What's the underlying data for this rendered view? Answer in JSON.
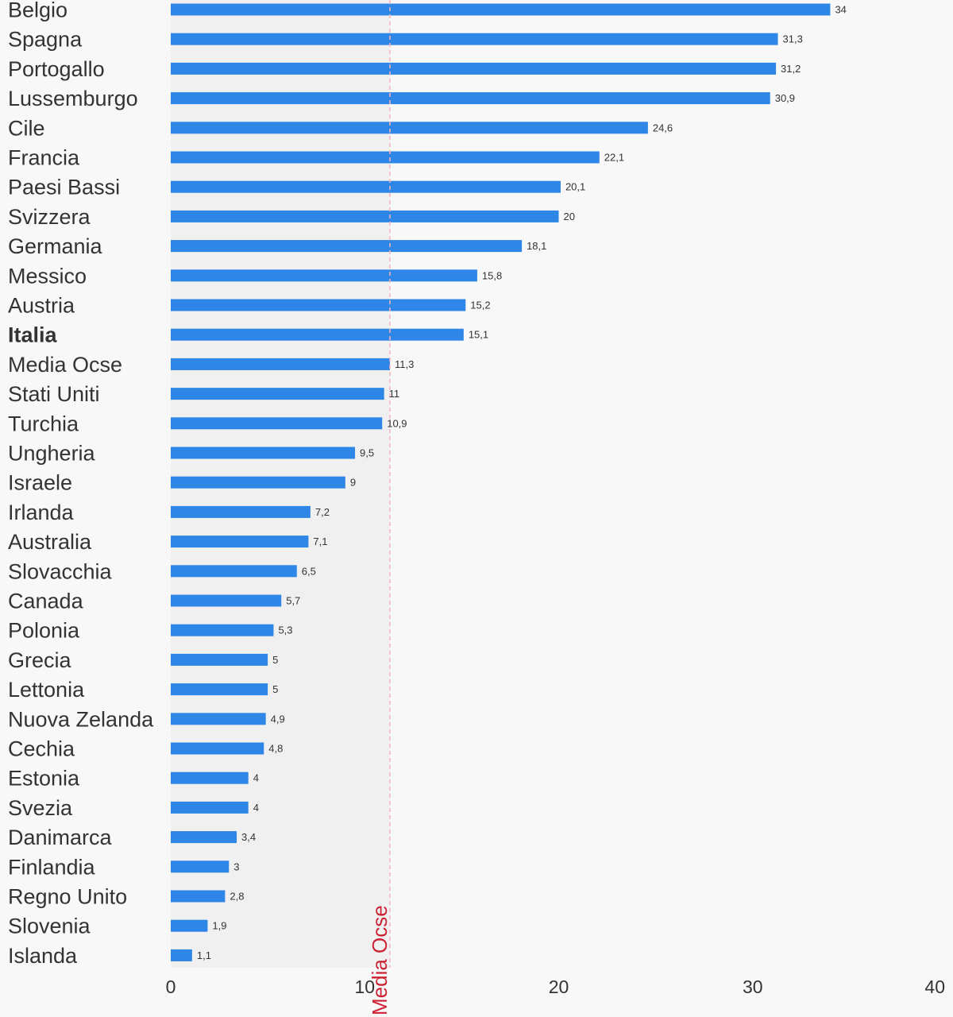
{
  "chart_data": {
    "type": "bar",
    "orientation": "horizontal",
    "categories": [
      "Belgio",
      "Spagna",
      "Portogallo",
      "Lussemburgo",
      "Cile",
      "Francia",
      "Paesi Bassi",
      "Svizzera",
      "Germania",
      "Messico",
      "Austria",
      "Italia",
      "Media Ocse",
      "Stati Uniti",
      "Turchia",
      "Ungheria",
      "Israele",
      "Irlanda",
      "Australia",
      "Slovacchia",
      "Canada",
      "Polonia",
      "Grecia",
      "Lettonia",
      "Nuova Zelanda",
      "Cechia",
      "Estonia",
      "Svezia",
      "Danimarca",
      "Finlandia",
      "Regno Unito",
      "Slovenia",
      "Islanda"
    ],
    "values": [
      34,
      31.3,
      31.2,
      30.9,
      24.6,
      22.1,
      20.1,
      20,
      18.1,
      15.8,
      15.2,
      15.1,
      11.3,
      11,
      10.9,
      9.5,
      9,
      7.2,
      7.1,
      6.5,
      5.7,
      5.3,
      5,
      5,
      4.9,
      4.8,
      4,
      4,
      3.4,
      3,
      2.8,
      1.9,
      1.1
    ],
    "value_labels": [
      "34",
      "31,3",
      "31,2",
      "30,9",
      "24,6",
      "22,1",
      "20,1",
      "20",
      "18,1",
      "15,8",
      "15,2",
      "15,1",
      "11,3",
      "11",
      "10,9",
      "9,5",
      "9",
      "7,2",
      "7,1",
      "6,5",
      "5,7",
      "5,3",
      "5",
      "5",
      "4,9",
      "4,8",
      "4",
      "4",
      "3,4",
      "3",
      "2,8",
      "1,9",
      "1,1"
    ],
    "highlight_category": "Italia",
    "xlim": [
      0,
      40
    ],
    "xticks": [
      0,
      10,
      20,
      30,
      40
    ],
    "xtick_labels": [
      "0",
      "10",
      "20",
      "30",
      "40"
    ],
    "reference_line": {
      "label": "Media Ocse",
      "value": 11.3
    },
    "shaded_band": [
      0,
      11.3
    ],
    "grid": false,
    "colors": {
      "bar": "#2e87e6",
      "band": "#f0f0f0",
      "reference": "#cc2233",
      "reference_line": "#f4b6be",
      "background": "#f8f8f8",
      "text": "#333333"
    }
  }
}
